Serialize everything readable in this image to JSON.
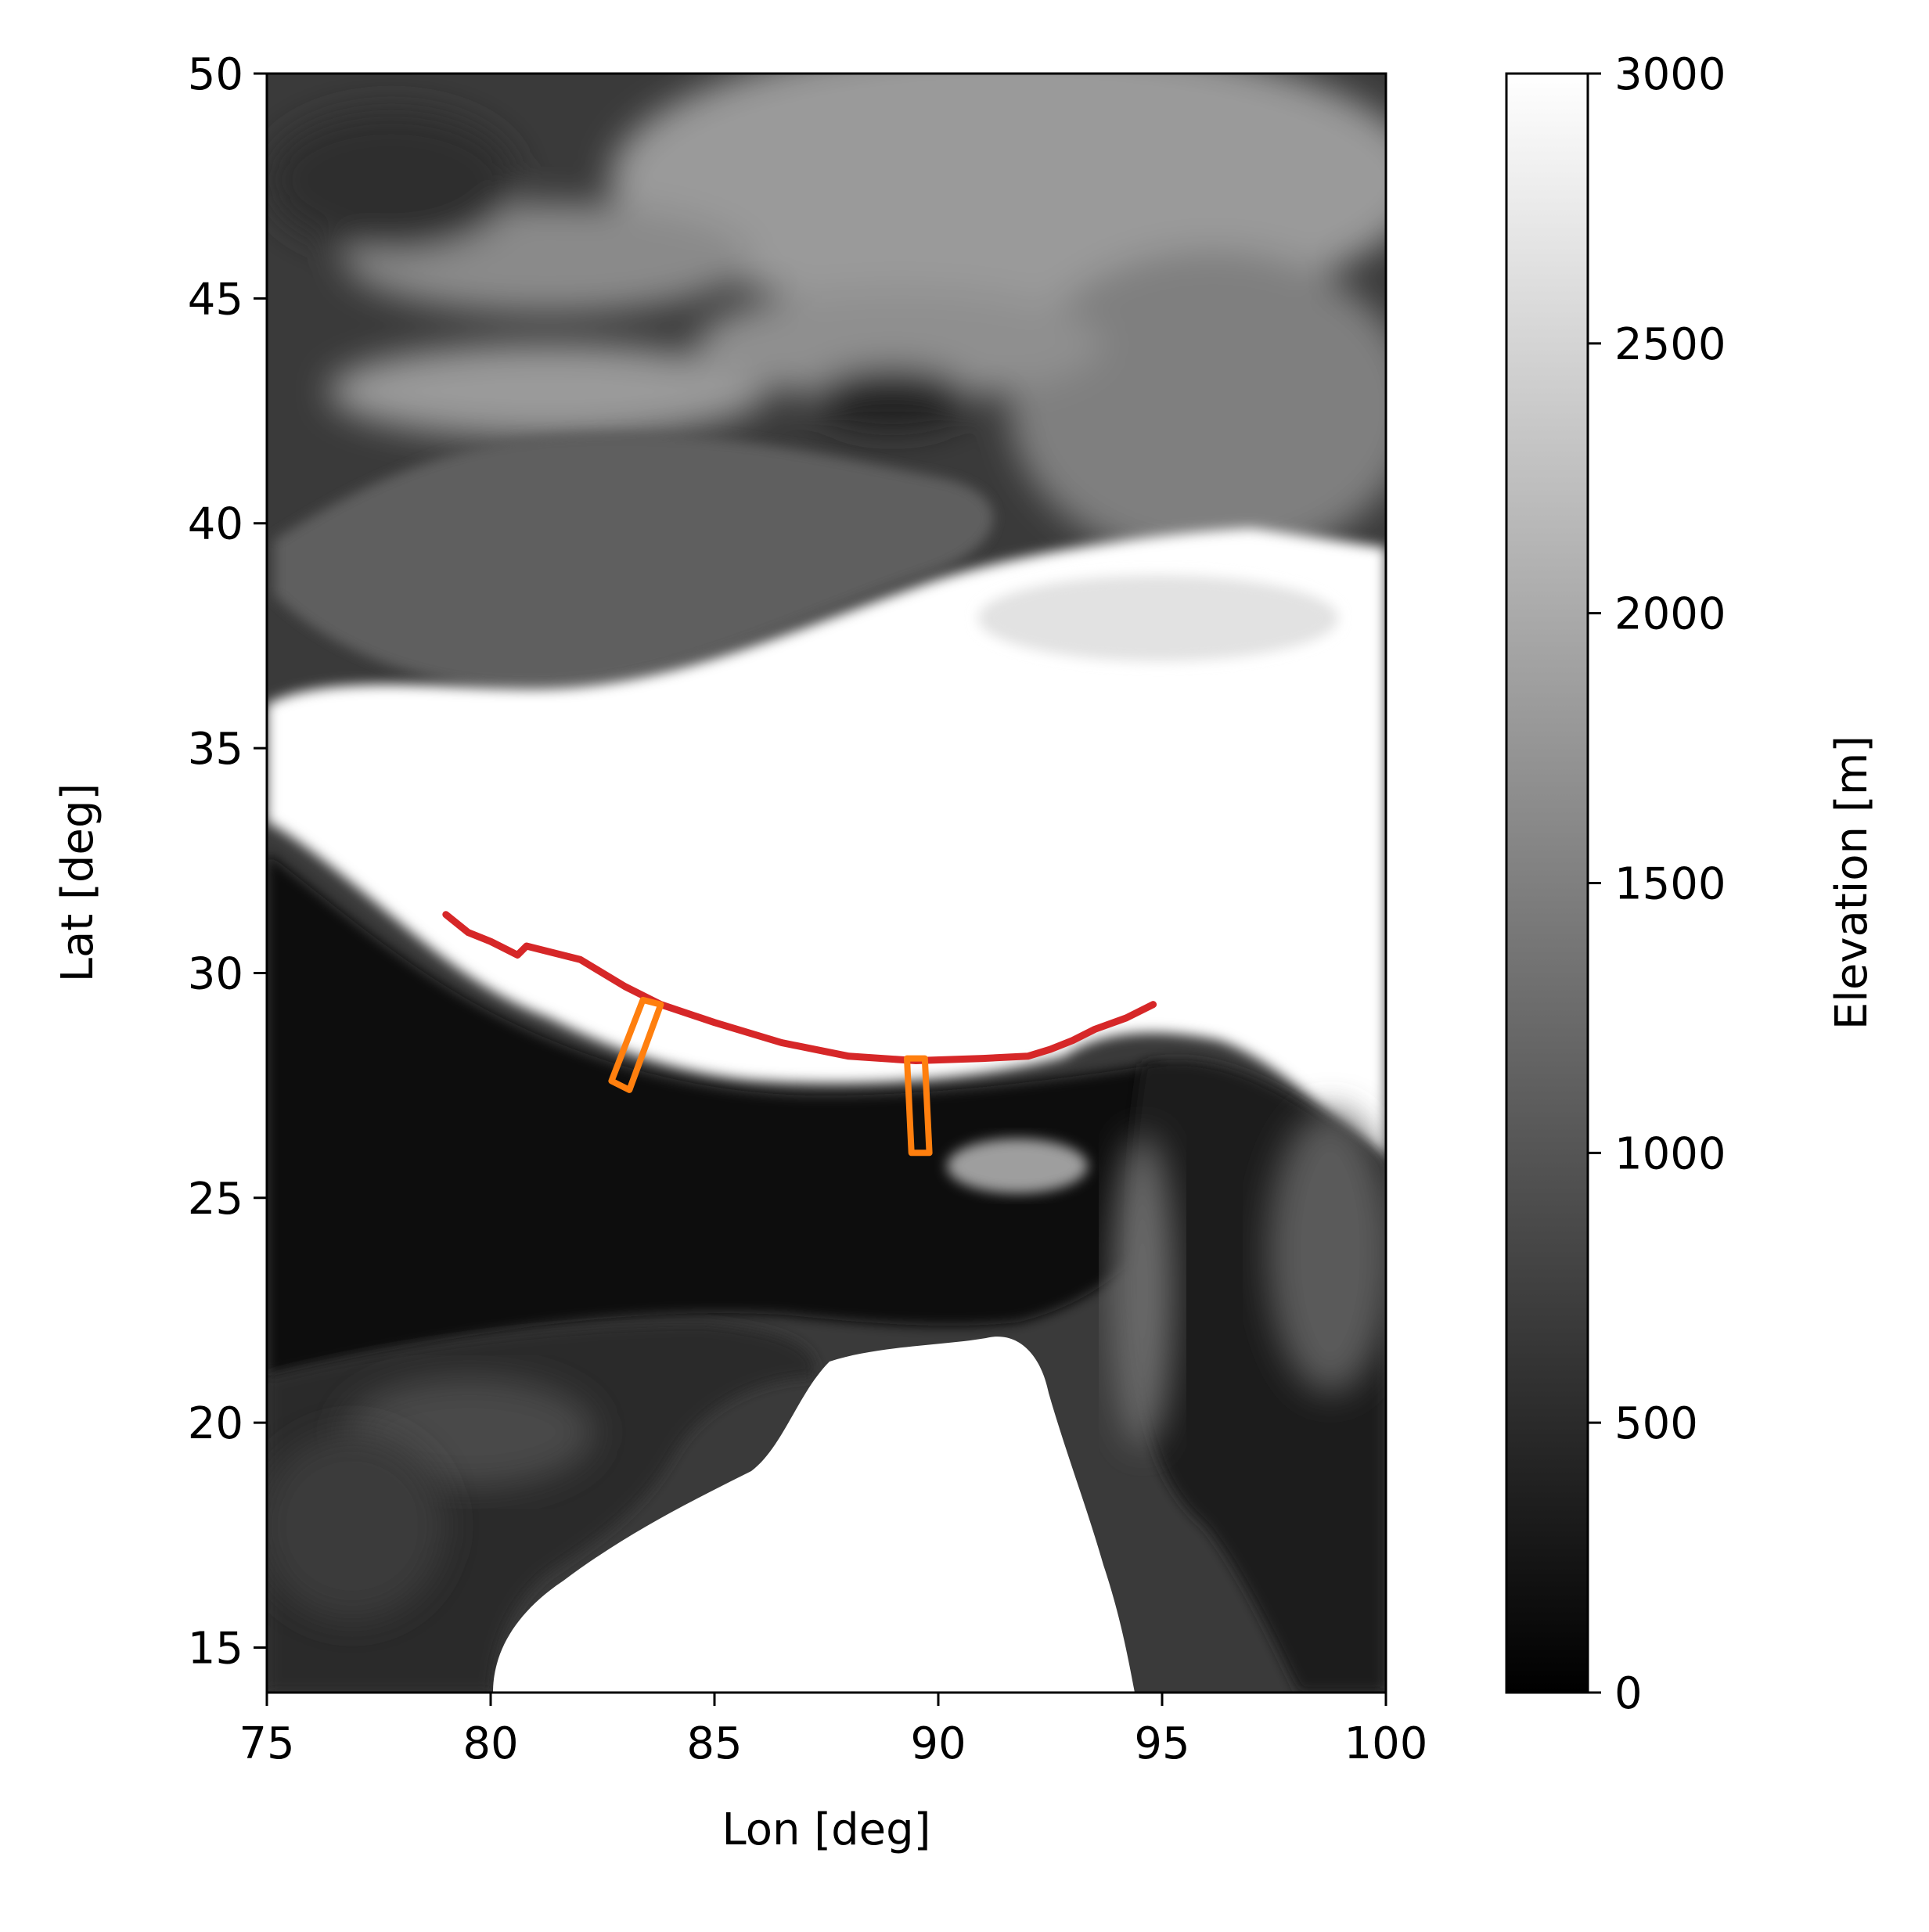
{
  "chart_data": {
    "type": "map",
    "xlabel": "Lon [deg]",
    "ylabel": "Lat [deg]",
    "xlim": [
      75,
      100
    ],
    "ylim": [
      14,
      50
    ],
    "xticks": [
      "75",
      "80",
      "85",
      "90",
      "95",
      "100"
    ],
    "yticks": [
      "15",
      "20",
      "25",
      "30",
      "35",
      "40",
      "45",
      "50"
    ],
    "colorbar": {
      "label": "Elevation [m]",
      "range": [
        0,
        3000
      ],
      "ticks": [
        "0",
        "500",
        "1000",
        "1500",
        "2000",
        "2500",
        "3000"
      ],
      "colormap": "gray"
    },
    "overlays": [
      {
        "kind": "line",
        "color": "#d62728",
        "points": [
          [
            79.0,
            31.3
          ],
          [
            79.5,
            30.9
          ],
          [
            80.0,
            30.7
          ],
          [
            80.4,
            30.5
          ],
          [
            80.6,
            30.4
          ],
          [
            80.8,
            30.6
          ],
          [
            81.2,
            30.5
          ],
          [
            82.0,
            30.3
          ],
          [
            83.0,
            29.7
          ],
          [
            83.8,
            29.3
          ],
          [
            85.0,
            28.9
          ],
          [
            86.5,
            28.45
          ],
          [
            88.0,
            28.15
          ],
          [
            89.5,
            28.05
          ],
          [
            91.0,
            28.1
          ],
          [
            92.0,
            28.15
          ],
          [
            92.5,
            28.3
          ],
          [
            93.0,
            28.5
          ],
          [
            93.5,
            28.75
          ],
          [
            94.2,
            29.0
          ],
          [
            94.8,
            29.3
          ]
        ]
      },
      {
        "kind": "polygon",
        "color": "#ff7f0e",
        "points": [
          [
            83.4,
            29.4
          ],
          [
            83.8,
            29.3
          ],
          [
            83.1,
            27.4
          ],
          [
            82.7,
            27.6
          ]
        ]
      },
      {
        "kind": "polygon",
        "color": "#ff7f0e",
        "points": [
          [
            89.3,
            28.1
          ],
          [
            89.7,
            28.1
          ],
          [
            89.8,
            26.0
          ],
          [
            89.4,
            26.0
          ]
        ]
      }
    ]
  },
  "colors": {
    "line": "#d62728",
    "boxes": "#ff7f0e"
  }
}
